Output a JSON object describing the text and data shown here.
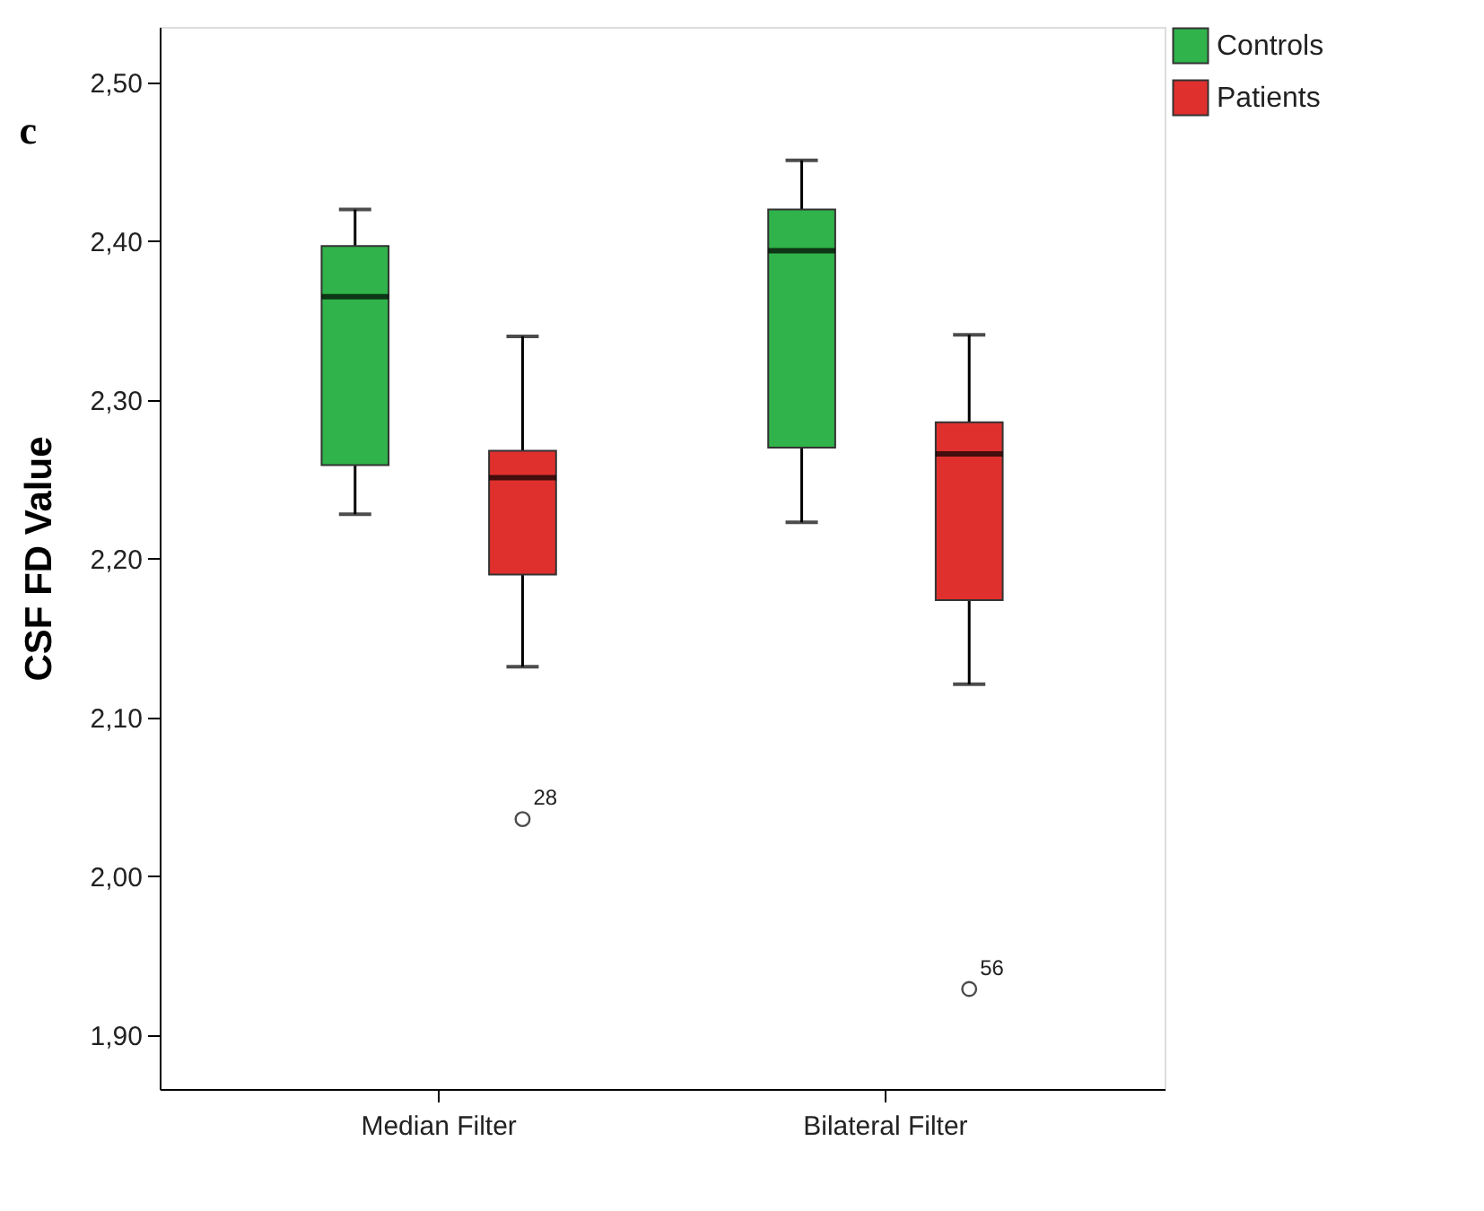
{
  "chart_data": {
    "type": "box",
    "title": "c",
    "ylabel": "CSF FD Value",
    "categories": [
      "Median Filter",
      "Bilateral Filter"
    ],
    "series": [
      {
        "name": "Controls",
        "color": "#2fb34a",
        "boxes": [
          {
            "low": 2.228,
            "q1": 2.259,
            "median": 2.365,
            "q3": 2.397,
            "high": 2.42
          },
          {
            "low": 2.223,
            "q1": 2.27,
            "median": 2.394,
            "q3": 2.42,
            "high": 2.451
          }
        ]
      },
      {
        "name": "Patients",
        "color": "#e0302e",
        "boxes": [
          {
            "low": 2.132,
            "q1": 2.19,
            "median": 2.251,
            "q3": 2.268,
            "high": 2.34,
            "outliers": [
              2.036
            ]
          },
          {
            "low": 2.121,
            "q1": 2.174,
            "median": 2.266,
            "q3": 2.286,
            "high": 2.341,
            "outliers": [
              1.929
            ]
          }
        ]
      }
    ],
    "ylim": [
      1.866,
      2.535
    ],
    "yticks": [
      {
        "value": 1.9,
        "label": "1,90"
      },
      {
        "value": 2.0,
        "label": "2,00"
      },
      {
        "value": 2.1,
        "label": "2,10"
      },
      {
        "value": 2.2,
        "label": "2,20"
      },
      {
        "value": 2.3,
        "label": "2,30"
      },
      {
        "value": 2.4,
        "label": "2,40"
      },
      {
        "value": 2.5,
        "label": "2,50"
      }
    ],
    "annotations": [
      "28",
      "56"
    ],
    "grid": false,
    "legend": "right"
  }
}
